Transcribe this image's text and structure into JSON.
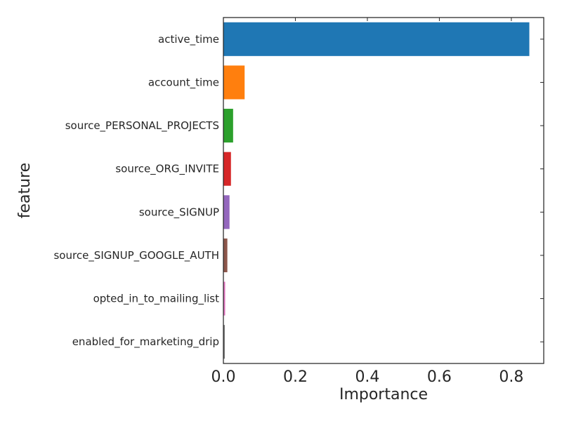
{
  "chart_data": {
    "type": "bar",
    "orientation": "horizontal",
    "xlabel": "Importance",
    "ylabel": "feature",
    "xlim": [
      0,
      0.89
    ],
    "xticks": [
      0.0,
      0.2,
      0.4,
      0.6,
      0.8
    ],
    "xtick_labels": [
      "0.0",
      "0.2",
      "0.4",
      "0.6",
      "0.8"
    ],
    "grid": false,
    "categories": [
      "active_time",
      "account_time",
      "source_PERSONAL_PROJECTS",
      "source_ORG_INVITE",
      "source_SIGNUP",
      "source_SIGNUP_GOOGLE_AUTH",
      "opted_in_to_mailing_list",
      "enabled_for_marketing_drip"
    ],
    "values": [
      0.85,
      0.059,
      0.027,
      0.021,
      0.017,
      0.011,
      0.005,
      0.004
    ],
    "colors": [
      "#1f77b4",
      "#ff7f0e",
      "#2ca02c",
      "#d62728",
      "#9467bd",
      "#8c564b",
      "#e377c2",
      "#7f7f7f"
    ]
  }
}
